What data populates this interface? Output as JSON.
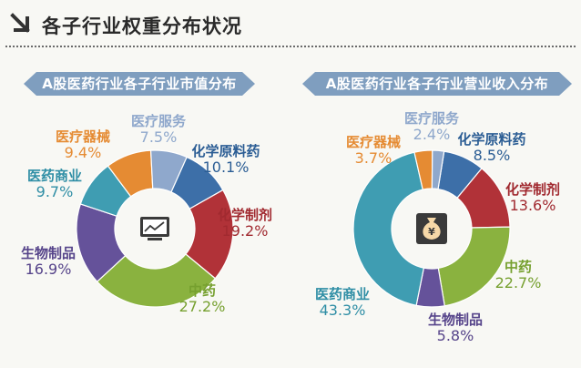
{
  "header": {
    "title": "各子行业权重分布状况"
  },
  "chart_data": [
    {
      "type": "pie",
      "title": "A股医药行业各子行业市值分布",
      "categories": [
        "化学原料药",
        "化学制剂",
        "中药",
        "生物制品",
        "医药商业",
        "医疗器械",
        "医疗服务"
      ],
      "values": [
        10.1,
        19.2,
        27.2,
        16.9,
        9.7,
        9.4,
        7.5
      ],
      "value_labels": [
        "10.1%",
        "19.2%",
        "27.2%",
        "16.9%",
        "9.7%",
        "9.4%",
        "7.5%"
      ],
      "colors": [
        "#3d6fa8",
        "#b13238",
        "#8ab23f",
        "#65529a",
        "#3f9db2",
        "#e58b33",
        "#8fa8cc"
      ],
      "center_icon": "chart-screen-icon"
    },
    {
      "type": "pie",
      "title": "A股医药行业各子行业营业收入分布",
      "categories": [
        "化学原料药",
        "化学制剂",
        "中药",
        "生物制品",
        "医药商业",
        "医疗器械",
        "医疗服务"
      ],
      "values": [
        8.5,
        13.6,
        22.7,
        5.8,
        43.3,
        3.7,
        2.4
      ],
      "value_labels": [
        "8.5%",
        "13.6%",
        "22.7%",
        "5.8%",
        "43.3%",
        "3.7%",
        "2.4%"
      ],
      "colors": [
        "#3d6fa8",
        "#b13238",
        "#8ab23f",
        "#65529a",
        "#3f9db2",
        "#e58b33",
        "#8fa8cc"
      ],
      "center_icon": "money-bag-icon"
    }
  ]
}
